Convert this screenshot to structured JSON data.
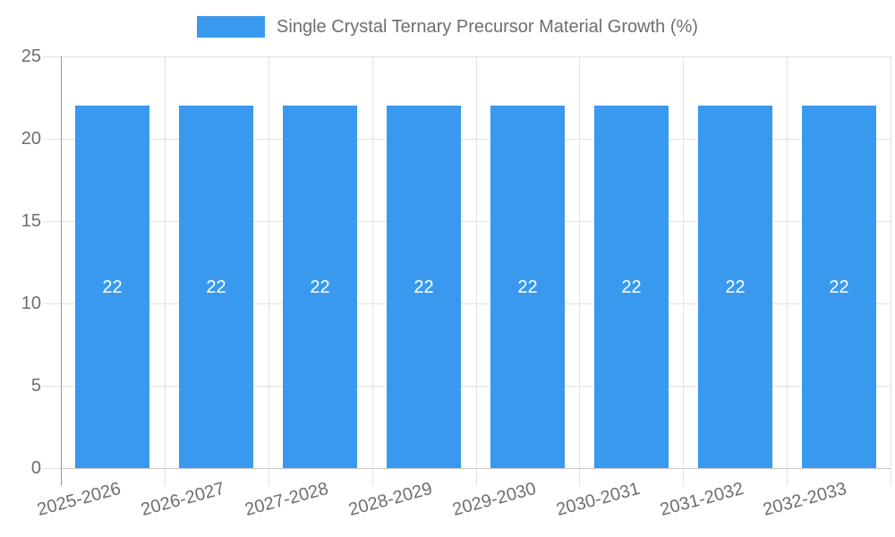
{
  "chart_data": {
    "type": "bar",
    "title": "Single Crystal Ternary Precursor Material Growth (%)",
    "categories": [
      "2025-2026",
      "2026-2027",
      "2027-2028",
      "2028-2029",
      "2029-2030",
      "2030-2031",
      "2031-2032",
      "2032-2033"
    ],
    "values": [
      22,
      22,
      22,
      22,
      22,
      22,
      22,
      22
    ],
    "value_labels": [
      "22",
      "22",
      "22",
      "22",
      "22",
      "22",
      "22",
      "22"
    ],
    "xlabel": "",
    "ylabel": "",
    "ylim": [
      0,
      25
    ],
    "yticks": [
      0,
      5,
      10,
      15,
      20,
      25
    ],
    "ytick_labels": [
      "0",
      "5",
      "10",
      "15",
      "20",
      "25"
    ],
    "grid": true,
    "legend_position": "top",
    "colors": {
      "bar": "#3999EF",
      "value_label": "#FFFFFF",
      "axis_text": "#6E6E6E",
      "grid_line": "#E2E2E2",
      "axis_line": "#9A9A9A",
      "baseline": "#C6C6C6"
    }
  }
}
